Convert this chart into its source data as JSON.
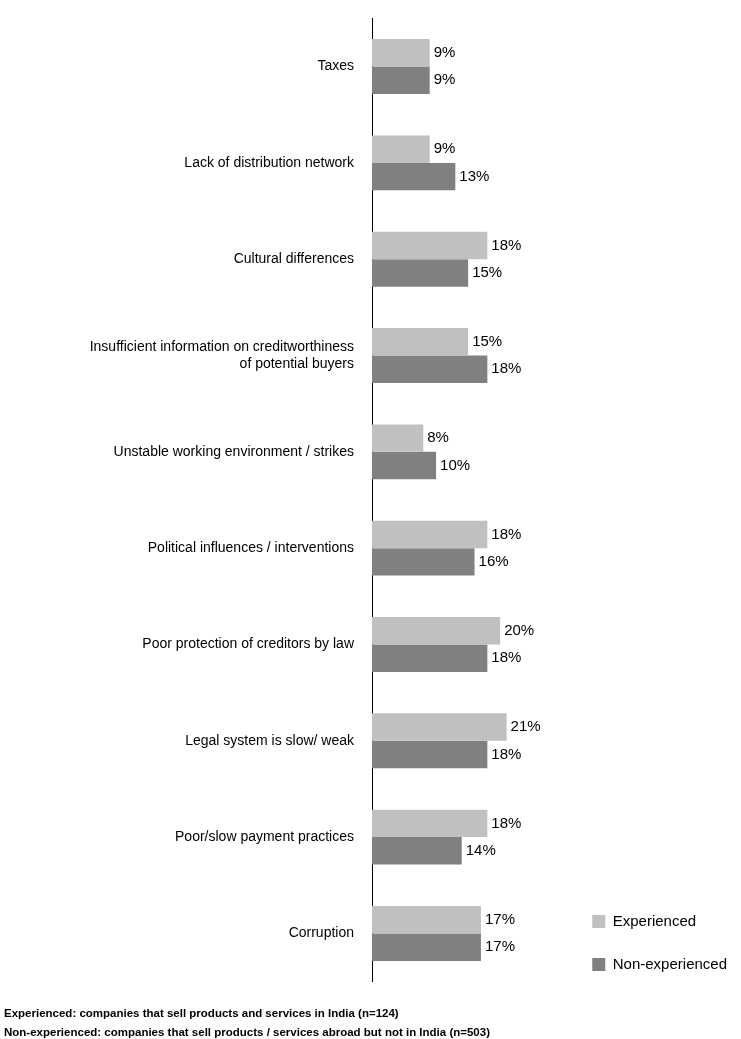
{
  "chart_data": {
    "type": "bar",
    "orientation": "horizontal",
    "categories": [
      "Taxes",
      "Lack of distribution network",
      "Cultural differences",
      "Insufficient information on creditworthiness\nof potential buyers",
      "Unstable working environment / strikes",
      "Political influences / interventions",
      "Poor protection of creditors by law",
      "Legal system is slow/ weak",
      "Poor/slow payment practices",
      "Corruption"
    ],
    "series": [
      {
        "name": "Experienced",
        "color": "#c0c0c0",
        "values": [
          9,
          9,
          18,
          15,
          8,
          18,
          20,
          21,
          18,
          17
        ],
        "value_labels": [
          "9%",
          "9%",
          "18%",
          "15%",
          "8%",
          "18%",
          "20%",
          "21%",
          "18%",
          "17%"
        ]
      },
      {
        "name": "Non-experienced",
        "color": "#808080",
        "values": [
          9,
          13,
          15,
          18,
          10,
          16,
          18,
          18,
          14,
          17
        ],
        "value_labels": [
          "9%",
          "13%",
          "15%",
          "18%",
          "10%",
          "16%",
          "18%",
          "18%",
          "14%",
          "17%"
        ]
      }
    ],
    "tick_labels": "y",
    "legend": "bottom right",
    "annotations": [
      "Experienced: companies that sell products and services in India (n=124)",
      "Non-experienced: companies that sell products / services abroad but not in India (n=503)"
    ]
  }
}
